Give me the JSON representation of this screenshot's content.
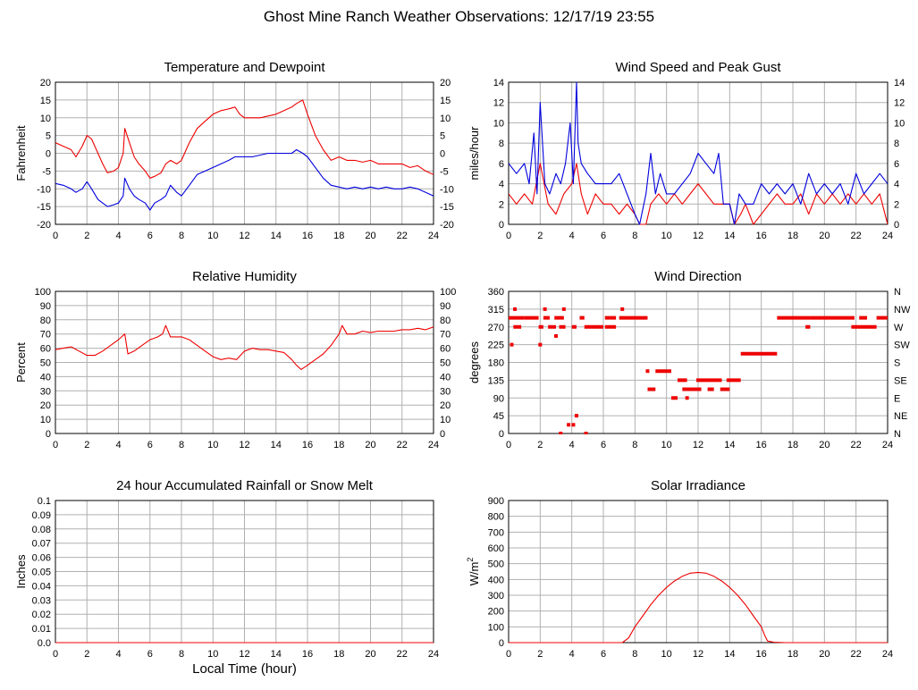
{
  "page": {
    "title": "Ghost Mine Ranch Weather Observations: 12/17/19 23:55"
  },
  "colors": {
    "red": "#ee0000",
    "blue": "#0000dd",
    "grid": "#b0b0b0",
    "frame": "#000000"
  },
  "chart_data": [
    {
      "id": "temp",
      "type": "line",
      "title": "Temperature and Dewpoint",
      "xlabel": "",
      "ylabel": "Fahrenheit",
      "xlim": [
        0,
        24
      ],
      "xticks": [
        "0",
        "2",
        "4",
        "6",
        "8",
        "10",
        "12",
        "14",
        "16",
        "18",
        "20",
        "22",
        "24"
      ],
      "ylim": [
        -20,
        20
      ],
      "yticks": [
        "-20",
        "-15",
        "-10",
        "-5",
        "0",
        "5",
        "10",
        "15",
        "20"
      ],
      "right_yticks": [
        "-20",
        "-15",
        "-10",
        "-5",
        "0",
        "5",
        "10",
        "15",
        "20"
      ],
      "grid": true,
      "series": [
        {
          "color": "red",
          "x": [
            0,
            0.5,
            1,
            1.3,
            1.7,
            2.0,
            2.3,
            2.7,
            3.0,
            3.3,
            3.7,
            4.0,
            4.3,
            4.4,
            4.7,
            5.0,
            5.3,
            5.7,
            6.0,
            6.3,
            6.7,
            7.0,
            7.3,
            7.7,
            8.0,
            8.5,
            9.0,
            9.5,
            10.0,
            10.5,
            11.0,
            11.4,
            11.7,
            12.0,
            12.5,
            13.0,
            13.5,
            14.0,
            14.5,
            15.0,
            15.3,
            15.7,
            16.0,
            16.5,
            17.0,
            17.5,
            18.0,
            18.5,
            19.0,
            19.5,
            20.0,
            20.5,
            21.0,
            21.5,
            22.0,
            22.5,
            23.0,
            23.5,
            24.0
          ],
          "y": [
            3,
            2,
            1,
            -1,
            2,
            5,
            4,
            0,
            -3,
            -5.5,
            -5,
            -4,
            0,
            7,
            3,
            -1,
            -3,
            -5,
            -7,
            -6.5,
            -5.5,
            -3,
            -2,
            -3,
            -2,
            3,
            7,
            9,
            11,
            12,
            12.5,
            13,
            11,
            10,
            10,
            10,
            10.5,
            11,
            12,
            13,
            14,
            15,
            11,
            5,
            1,
            -2,
            -1,
            -2,
            -2,
            -2.5,
            -2,
            -3,
            -3,
            -3,
            -3,
            -4,
            -3.5,
            -5,
            -6
          ]
        },
        {
          "color": "blue",
          "x": [
            0,
            0.5,
            1,
            1.3,
            1.7,
            2.0,
            2.3,
            2.7,
            3.0,
            3.3,
            3.7,
            4.0,
            4.3,
            4.4,
            4.7,
            5.0,
            5.3,
            5.7,
            6.0,
            6.3,
            6.7,
            7.0,
            7.3,
            7.7,
            8.0,
            8.5,
            9.0,
            9.5,
            10.0,
            10.5,
            11.0,
            11.4,
            11.7,
            12.0,
            12.5,
            13.0,
            13.5,
            14.0,
            14.5,
            15.0,
            15.3,
            15.7,
            16.0,
            16.5,
            17.0,
            17.5,
            18.0,
            18.5,
            19.0,
            19.5,
            20.0,
            20.5,
            21.0,
            21.5,
            22.0,
            22.5,
            23.0,
            23.5,
            24.0
          ],
          "y": [
            -8.5,
            -9,
            -10,
            -11,
            -10,
            -8,
            -10,
            -13,
            -14,
            -15,
            -14.5,
            -14,
            -12,
            -7,
            -10,
            -12,
            -13,
            -14,
            -16,
            -14,
            -13,
            -12,
            -9,
            -11,
            -12,
            -9,
            -6,
            -5,
            -4,
            -3,
            -2,
            -1,
            -1,
            -1,
            -1,
            -0.5,
            0,
            0,
            0,
            0,
            1,
            0,
            -1,
            -4,
            -7,
            -9,
            -9.5,
            -10,
            -9.5,
            -10,
            -9.5,
            -10,
            -9.5,
            -10,
            -10,
            -9.5,
            -10,
            -11,
            -12
          ]
        }
      ]
    },
    {
      "id": "wind",
      "type": "line",
      "title": "Wind Speed and Peak Gust",
      "xlabel": "",
      "ylabel": "miles/hour",
      "xlim": [
        0,
        24
      ],
      "xticks": [
        "0",
        "2",
        "4",
        "6",
        "8",
        "10",
        "12",
        "14",
        "16",
        "18",
        "20",
        "22",
        "24"
      ],
      "ylim": [
        0,
        14
      ],
      "yticks": [
        "0",
        "2",
        "4",
        "6",
        "8",
        "10",
        "12",
        "14"
      ],
      "right_yticks": [
        "0",
        "2",
        "4",
        "6",
        "8",
        "10",
        "12",
        "14"
      ],
      "grid": true,
      "series": [
        {
          "color": "red",
          "x": [
            0,
            0.5,
            1,
            1.5,
            2,
            2.5,
            3,
            3.5,
            4,
            4.3,
            4.6,
            5,
            5.5,
            6,
            6.5,
            7,
            7.5,
            8,
            8.3,
            8.7,
            9,
            9.5,
            10,
            10.5,
            11,
            11.5,
            12,
            12.5,
            13,
            13.5,
            14,
            14.3,
            14.7,
            15,
            15.5,
            16,
            16.5,
            17,
            17.5,
            18,
            18.5,
            19,
            19.5,
            20,
            20.5,
            21,
            21.5,
            22,
            22.5,
            23,
            23.5,
            24
          ],
          "y": [
            3,
            2,
            3,
            2,
            6,
            2,
            1,
            3,
            4,
            6,
            3,
            1,
            3,
            2,
            2,
            1,
            2,
            1,
            0,
            0,
            2,
            3,
            2,
            3,
            2,
            3,
            4,
            3,
            2,
            2,
            2,
            0,
            1,
            2,
            0,
            1,
            2,
            3,
            2,
            2,
            3,
            1,
            3,
            2,
            3,
            2,
            3,
            2,
            3,
            2,
            3,
            0
          ]
        },
        {
          "color": "blue",
          "x": [
            0,
            0.5,
            1,
            1.3,
            1.6,
            1.8,
            2.0,
            2.3,
            2.6,
            3.0,
            3.3,
            3.6,
            3.9,
            4.1,
            4.3,
            4.4,
            4.6,
            5,
            5.5,
            6,
            6.5,
            7,
            7.5,
            8,
            8.3,
            8.7,
            9,
            9.3,
            9.6,
            10,
            10.5,
            11,
            11.5,
            12,
            12.5,
            13,
            13.3,
            13.6,
            14,
            14.3,
            14.6,
            15,
            15.5,
            16,
            16.5,
            17,
            17.5,
            18,
            18.5,
            19,
            19.5,
            20,
            20.5,
            21,
            21.5,
            22,
            22.5,
            23,
            23.5,
            24
          ],
          "y": [
            6,
            5,
            6,
            4,
            9,
            3,
            12,
            4,
            3,
            5,
            4,
            6,
            10,
            4,
            14,
            8,
            6,
            5,
            4,
            4,
            4,
            5,
            3,
            1,
            0,
            3,
            7,
            3,
            5,
            3,
            3,
            4,
            5,
            7,
            6,
            5,
            7,
            2,
            2,
            0,
            3,
            2,
            2,
            4,
            3,
            4,
            3,
            4,
            2,
            5,
            3,
            4,
            3,
            4,
            2,
            5,
            3,
            4,
            5,
            4
          ]
        }
      ]
    },
    {
      "id": "rh",
      "type": "line",
      "title": "Relative Humidity",
      "xlabel": "",
      "ylabel": "Percent",
      "xlim": [
        0,
        24
      ],
      "xticks": [
        "0",
        "2",
        "4",
        "6",
        "8",
        "10",
        "12",
        "14",
        "16",
        "18",
        "20",
        "22",
        "24"
      ],
      "ylim": [
        0,
        100
      ],
      "yticks": [
        "0",
        "10",
        "20",
        "30",
        "40",
        "50",
        "60",
        "70",
        "80",
        "90",
        "100"
      ],
      "right_yticks": [
        "0",
        "10",
        "20",
        "30",
        "40",
        "50",
        "60",
        "70",
        "80",
        "90",
        "100"
      ],
      "grid": true,
      "series": [
        {
          "color": "red",
          "x": [
            0,
            0.5,
            1,
            1.5,
            2,
            2.5,
            3,
            3.5,
            4,
            4.2,
            4.4,
            4.6,
            5,
            5.5,
            6,
            6.5,
            6.8,
            7.0,
            7.3,
            7.7,
            8,
            8.5,
            9,
            9.5,
            10,
            10.5,
            11,
            11.5,
            12,
            12.5,
            13,
            13.5,
            14,
            14.5,
            15,
            15.3,
            15.6,
            16,
            16.5,
            17,
            17.5,
            18,
            18.2,
            18.5,
            19,
            19.5,
            20,
            20.5,
            21,
            21.5,
            22,
            22.5,
            23,
            23.5,
            24
          ],
          "y": [
            59,
            60,
            61,
            58,
            55,
            55,
            58,
            62,
            66,
            68,
            70,
            56,
            58,
            62,
            66,
            68,
            70,
            76,
            68,
            68,
            68,
            66,
            62,
            58,
            54,
            52,
            53,
            52,
            58,
            60,
            59,
            59,
            58,
            57,
            52,
            48,
            45,
            48,
            52,
            56,
            62,
            70,
            76,
            70,
            70,
            72,
            71,
            72,
            72,
            72,
            73,
            73,
            74,
            73,
            75
          ]
        }
      ]
    },
    {
      "id": "winddir",
      "type": "scatter",
      "title": "Wind Direction",
      "xlabel": "",
      "ylabel": "degrees",
      "xlim": [
        0,
        24
      ],
      "xticks": [
        "0",
        "2",
        "4",
        "6",
        "8",
        "10",
        "12",
        "14",
        "16",
        "18",
        "20",
        "22",
        "24"
      ],
      "ylim": [
        0,
        360
      ],
      "yticks": [
        "0",
        "45",
        "90",
        "135",
        "180",
        "225",
        "270",
        "315",
        "360"
      ],
      "right_yticks": [
        "N",
        "NE",
        "E",
        "SE",
        "S",
        "SW",
        "W",
        "NW",
        "N"
      ],
      "grid": true,
      "series": [
        {
          "color": "red",
          "segments": [
            [
              0,
              1,
              293
            ],
            [
              0.3,
              0.8,
              270
            ],
            [
              1.0,
              1.9,
              293
            ],
            [
              1.9,
              2.2,
              270
            ],
            [
              2.2,
              2.6,
              293
            ],
            [
              2.5,
              3.0,
              270
            ],
            [
              2.9,
              3.5,
              293
            ],
            [
              3.2,
              3.6,
              270
            ],
            [
              4.0,
              4.3,
              270
            ],
            [
              4.5,
              4.8,
              293
            ],
            [
              4.8,
              6.0,
              270
            ],
            [
              6.1,
              6.4,
              293
            ],
            [
              6.1,
              6.8,
              270
            ],
            [
              6.4,
              6.8,
              293
            ],
            [
              7.0,
              8.8,
              293
            ],
            [
              8.8,
              9.3,
              112
            ],
            [
              9.3,
              10.3,
              158
            ],
            [
              10.3,
              10.7,
              90
            ],
            [
              10.7,
              11.3,
              135
            ],
            [
              11.0,
              12.2,
              112
            ],
            [
              12.1,
              13.5,
              135
            ],
            [
              12.6,
              13.0,
              112
            ],
            [
              13.4,
              14.0,
              112
            ],
            [
              13.8,
              14.7,
              135
            ],
            [
              14.7,
              17.0,
              202
            ],
            [
              17.0,
              19.1,
              293
            ],
            [
              18.8,
              19.1,
              270
            ],
            [
              19.1,
              21.9,
              293
            ],
            [
              21.7,
              23.3,
              270
            ],
            [
              22.2,
              22.7,
              293
            ],
            [
              23.3,
              24,
              293
            ]
          ],
          "points": [
            [
              0.2,
              225
            ],
            [
              0.4,
              315
            ],
            [
              2.0,
              225
            ],
            [
              2.3,
              315
            ],
            [
              3.0,
              247
            ],
            [
              3.5,
              315
            ],
            [
              3.3,
              0
            ],
            [
              3.8,
              22
            ],
            [
              4.1,
              22
            ],
            [
              4.3,
              45
            ],
            [
              4.9,
              0
            ],
            [
              7.2,
              315
            ],
            [
              8.8,
              158
            ],
            [
              11.3,
              90
            ],
            [
              12.0,
              135
            ]
          ]
        }
      ]
    },
    {
      "id": "rain",
      "type": "line",
      "title": "24 hour Accumulated Rainfall or Snow Melt",
      "xlabel": "Local Time (hour)",
      "ylabel": "Inches",
      "xlim": [
        0,
        24
      ],
      "xticks": [
        "0",
        "2",
        "4",
        "6",
        "8",
        "10",
        "12",
        "14",
        "16",
        "18",
        "20",
        "22",
        "24"
      ],
      "ylim": [
        0,
        0.1
      ],
      "yticks": [
        "0.0",
        "0.01",
        "0.02",
        "0.03",
        "0.04",
        "0.05",
        "0.06",
        "0.07",
        "0.08",
        "0.09",
        "0.1"
      ],
      "right_yticks": [],
      "grid": true,
      "series": [
        {
          "color": "red",
          "x": [
            0,
            24
          ],
          "y": [
            0,
            0
          ]
        }
      ]
    },
    {
      "id": "solar",
      "type": "line",
      "title": "Solar Irradiance",
      "xlabel": "",
      "ylabel": "W/m",
      "ylabel_sup": "2",
      "xlim": [
        0,
        24
      ],
      "xticks": [
        "0",
        "2",
        "4",
        "6",
        "8",
        "10",
        "12",
        "14",
        "16",
        "18",
        "20",
        "22",
        "24"
      ],
      "ylim": [
        0,
        900
      ],
      "yticks": [
        "0",
        "100",
        "200",
        "300",
        "400",
        "500",
        "600",
        "700",
        "800",
        "900"
      ],
      "right_yticks": [],
      "grid": true,
      "series": [
        {
          "color": "red",
          "x": [
            0,
            7.2,
            7.6,
            8,
            8.5,
            9,
            9.5,
            10,
            10.5,
            11,
            11.5,
            12,
            12.5,
            13,
            13.5,
            14,
            14.5,
            15,
            15.5,
            16,
            16.2,
            16.4,
            16.8,
            17.5,
            24
          ],
          "y": [
            0,
            0,
            30,
            100,
            170,
            240,
            300,
            350,
            390,
            420,
            440,
            445,
            440,
            420,
            390,
            350,
            300,
            240,
            170,
            100,
            50,
            10,
            3,
            0,
            0
          ]
        }
      ]
    }
  ]
}
